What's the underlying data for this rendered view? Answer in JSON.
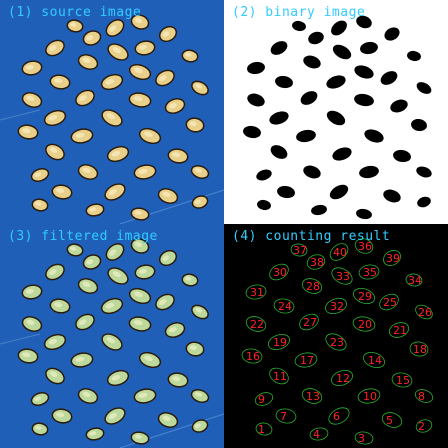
{
  "panels": [
    {
      "caption": "(1) source image",
      "kind": "source"
    },
    {
      "caption": "(2) binary image",
      "kind": "binary"
    },
    {
      "caption": "(3) filtered image",
      "kind": "filtered"
    },
    {
      "caption": "(4) counting result",
      "kind": "result"
    }
  ],
  "colors": {
    "caption": "#33ccff",
    "background_blue": "#1f5fb8",
    "seed_fill": "#2a1a0a",
    "seed_highlight": "#e9d08a",
    "seed_green": "#bcd89a",
    "binary_bg": "#ffffff",
    "binary_seed": "#000000",
    "contour": "#2db02d",
    "label": "#ff2222"
  },
  "count_labels": [
    "40",
    "36",
    "38",
    "37",
    "39",
    "33",
    "35",
    "30",
    "34",
    "28",
    "31",
    "29",
    "25",
    "24",
    "32",
    "26",
    "22",
    "27",
    "20",
    "21",
    "19",
    "23",
    "18",
    "16",
    "17",
    "14",
    "11",
    "12",
    "15",
    "13",
    "10",
    "9",
    "8",
    "7",
    "6",
    "5",
    "4",
    "3",
    "2",
    "1"
  ]
}
